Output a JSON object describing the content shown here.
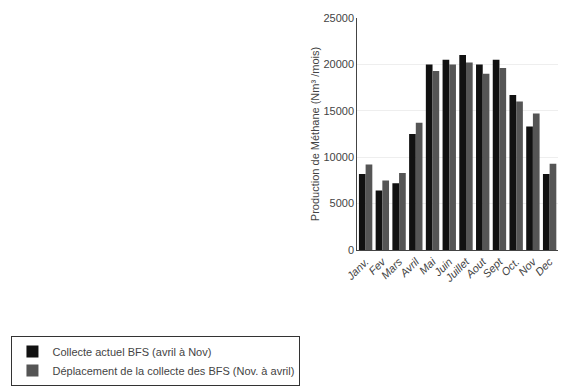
{
  "chart_data": {
    "type": "bar",
    "categories": [
      "Janv.",
      "Fev",
      "Mars",
      "Avril",
      "Mai",
      "Juin",
      "Juillet",
      "Aout",
      "Sept",
      "Oct.",
      "Nov",
      "Dec"
    ],
    "series": [
      {
        "name": "Collecte actuel BFS (avril à Nov)",
        "color": "#111111",
        "values": [
          8200,
          6400,
          7200,
          12500,
          20000,
          20500,
          21000,
          20000,
          20500,
          16700,
          13300,
          8200
        ]
      },
      {
        "name": "Déplacement de la collecte des BFS (Nov. à avril)",
        "color": "#555555",
        "values": [
          9200,
          7500,
          8300,
          13700,
          19300,
          20000,
          20200,
          19000,
          19600,
          16000,
          14700,
          9300
        ]
      }
    ],
    "ylabel": "Production de Méthane (Nm³ /mois)",
    "ylim": [
      0,
      25000
    ],
    "yticks": [
      0,
      5000,
      10000,
      15000,
      20000,
      25000
    ],
    "grid": true,
    "legend": "bottom left"
  }
}
